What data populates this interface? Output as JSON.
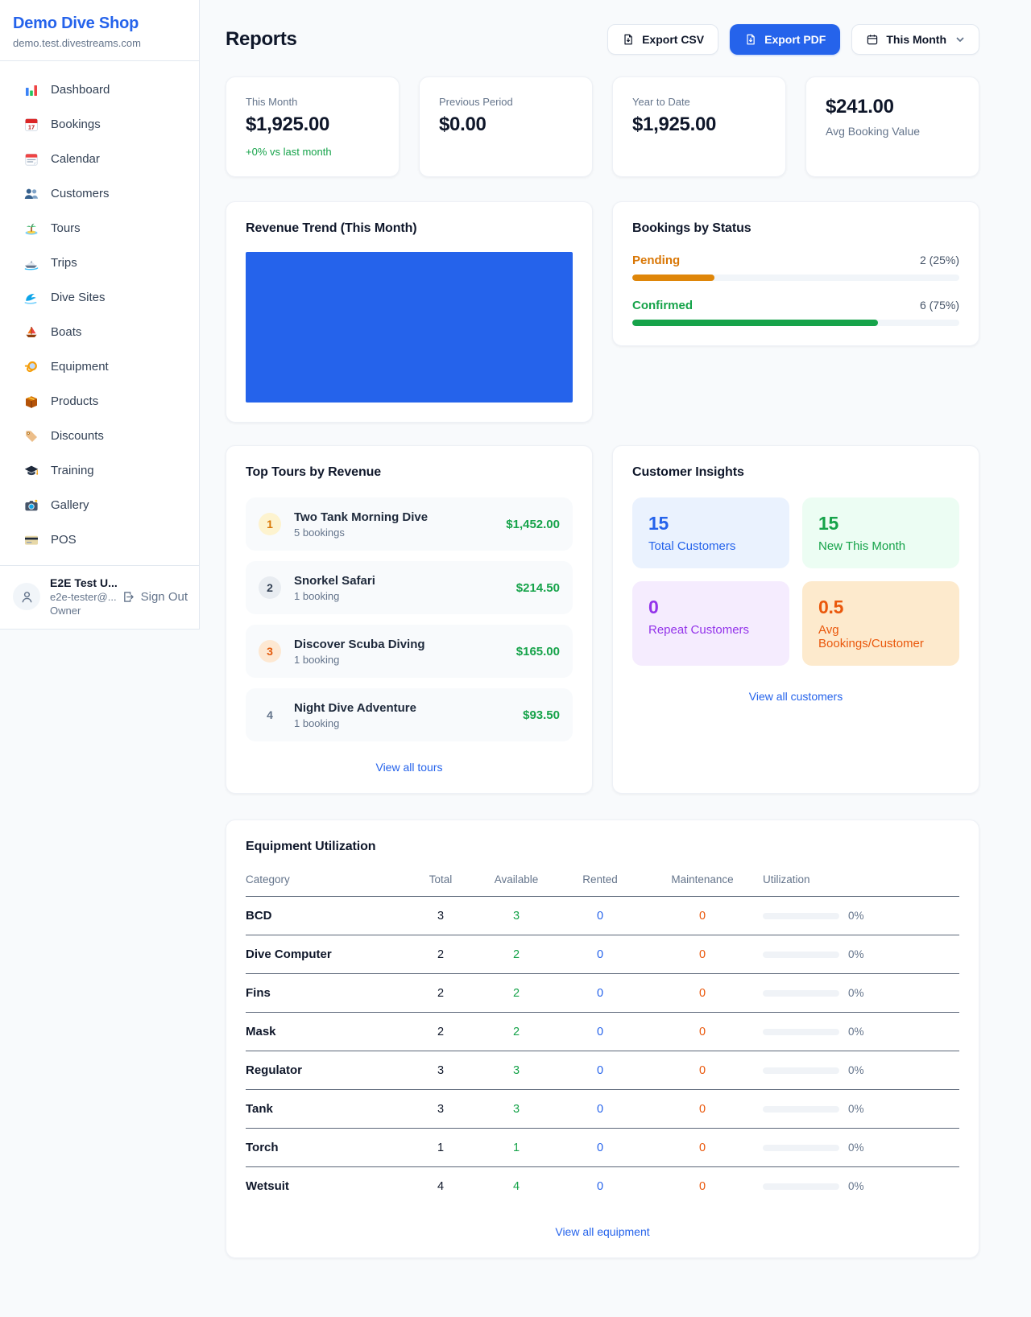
{
  "colors": {
    "primary": "#2563eb",
    "green": "#16a34a",
    "orange": "#df8609",
    "chart_blue": "#2563eb"
  },
  "sidebar": {
    "brand": {
      "name": "Demo Dive Shop",
      "domain": "demo.test.divestreams.com"
    },
    "nav": [
      {
        "label": "Dashboard",
        "icon": "dashboard"
      },
      {
        "label": "Bookings",
        "icon": "bookings"
      },
      {
        "label": "Calendar",
        "icon": "calendar"
      },
      {
        "label": "Customers",
        "icon": "customers"
      },
      {
        "label": "Tours",
        "icon": "tours"
      },
      {
        "label": "Trips",
        "icon": "trips"
      },
      {
        "label": "Dive Sites",
        "icon": "dive-sites"
      },
      {
        "label": "Boats",
        "icon": "boats"
      },
      {
        "label": "Equipment",
        "icon": "equipment"
      },
      {
        "label": "Products",
        "icon": "products"
      },
      {
        "label": "Discounts",
        "icon": "discounts"
      },
      {
        "label": "Training",
        "icon": "training"
      },
      {
        "label": "Gallery",
        "icon": "gallery"
      },
      {
        "label": "POS",
        "icon": "pos"
      }
    ],
    "user": {
      "name": "E2E Test U...",
      "email": "e2e-tester@...",
      "role": "Owner",
      "sign_out": "Sign Out"
    }
  },
  "header": {
    "title": "Reports",
    "export_csv": "Export CSV",
    "export_pdf": "Export PDF",
    "period": "This Month"
  },
  "stats": [
    {
      "label": "This Month",
      "value": "$1,925.00",
      "sub": "+0% vs last month",
      "order": "label-first"
    },
    {
      "label": "Previous Period",
      "value": "$0.00",
      "order": "label-first"
    },
    {
      "label": "Year to Date",
      "value": "$1,925.00",
      "order": "label-first"
    },
    {
      "label": "Avg Booking Value",
      "value": "$241.00",
      "order": "value-first"
    }
  ],
  "revenue_trend": {
    "title": "Revenue Trend (This Month)",
    "bar_fill_percent": 100,
    "bar_color": "#2563eb"
  },
  "bookings_by_status": {
    "title": "Bookings by Status",
    "rows": [
      {
        "label": "Pending",
        "value": "2 (25%)",
        "percent": 25,
        "color": "#df8609",
        "label_color": "#d97706"
      },
      {
        "label": "Confirmed",
        "value": "6 (75%)",
        "percent": 75,
        "color": "#16a34a",
        "label_color": "#16a34a"
      }
    ]
  },
  "top_tours": {
    "title": "Top Tours by Revenue",
    "link": "View all tours",
    "items": [
      {
        "rank": "1",
        "name": "Two Tank Morning Dive",
        "bookings": "5 bookings",
        "amount": "$1,452.00",
        "rank_bg": "#fdf3cf",
        "rank_color": "#d97706"
      },
      {
        "rank": "2",
        "name": "Snorkel Safari",
        "bookings": "1 booking",
        "amount": "$214.50",
        "rank_bg": "#e8ecf1",
        "rank_color": "#334155"
      },
      {
        "rank": "3",
        "name": "Discover Scuba Diving",
        "bookings": "1 booking",
        "amount": "$165.00",
        "rank_bg": "#fde8d2",
        "rank_color": "#e35a0c"
      },
      {
        "rank": "4",
        "name": "Night Dive Adventure",
        "bookings": "1 booking",
        "amount": "$93.50",
        "rank_bg": "transparent",
        "rank_color": "#64748b"
      }
    ]
  },
  "customer_insights": {
    "title": "Customer Insights",
    "link": "View all customers",
    "tiles": [
      {
        "value": "15",
        "label": "Total Customers",
        "bg": "#eaf2fe",
        "color": "#2563eb"
      },
      {
        "value": "15",
        "label": "New This Month",
        "bg": "#ecfdf3",
        "color": "#16a34a"
      },
      {
        "value": "0",
        "label": "Repeat Customers",
        "bg": "#f5ecfe",
        "color": "#9333ea"
      },
      {
        "value": "0.5",
        "label": "Avg Bookings/Customer",
        "bg": "#fdeacd",
        "color": "#ea580c"
      }
    ]
  },
  "equipment": {
    "title": "Equipment Utilization",
    "link": "View all equipment",
    "columns": [
      "Category",
      "Total",
      "Available",
      "Rented",
      "Maintenance",
      "Utilization"
    ],
    "rows": [
      {
        "category": "BCD",
        "total": "3",
        "available": "3",
        "rented": "0",
        "maintenance": "0",
        "utilization": "0%",
        "percent": 0
      },
      {
        "category": "Dive Computer",
        "total": "2",
        "available": "2",
        "rented": "0",
        "maintenance": "0",
        "utilization": "0%",
        "percent": 0
      },
      {
        "category": "Fins",
        "total": "2",
        "available": "2",
        "rented": "0",
        "maintenance": "0",
        "utilization": "0%",
        "percent": 0
      },
      {
        "category": "Mask",
        "total": "2",
        "available": "2",
        "rented": "0",
        "maintenance": "0",
        "utilization": "0%",
        "percent": 0
      },
      {
        "category": "Regulator",
        "total": "3",
        "available": "3",
        "rented": "0",
        "maintenance": "0",
        "utilization": "0%",
        "percent": 0
      },
      {
        "category": "Tank",
        "total": "3",
        "available": "3",
        "rented": "0",
        "maintenance": "0",
        "utilization": "0%",
        "percent": 0
      },
      {
        "category": "Torch",
        "total": "1",
        "available": "1",
        "rented": "0",
        "maintenance": "0",
        "utilization": "0%",
        "percent": 0
      },
      {
        "category": "Wetsuit",
        "total": "4",
        "available": "4",
        "rented": "0",
        "maintenance": "0",
        "utilization": "0%",
        "percent": 0
      }
    ]
  }
}
